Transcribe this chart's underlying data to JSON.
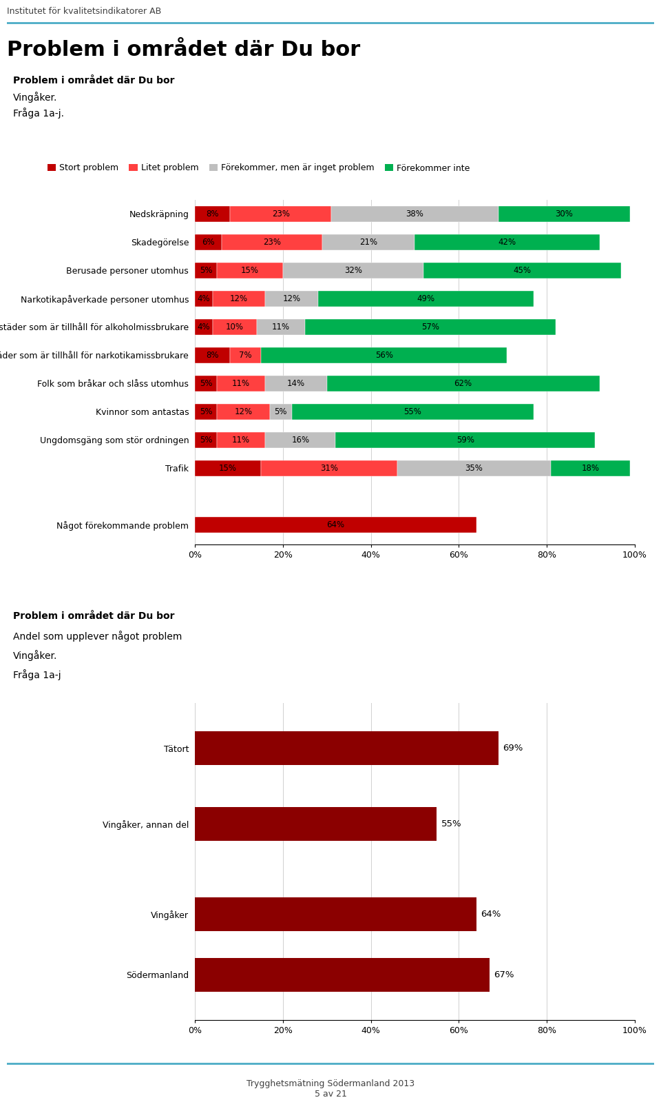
{
  "title_main": "Problem i området där Du bor",
  "subtitle1": "Problem i området där Du bor",
  "subtitle2": "Vingåker.",
  "subtitle3": "Fråga 1a-j.",
  "header_text": "Institutet för kvalitetsindikatorer AB",
  "footer_text": "Trygghetsmätning Södermanland 2013\n5 av 21",
  "legend_labels": [
    "Stort problem",
    "Litet problem",
    "Förekommer, men är inget problem",
    "Förekommer inte"
  ],
  "legend_colors": [
    "#c00000",
    "#ff4040",
    "#bfbfbf",
    "#00b050"
  ],
  "chart1_categories": [
    "Nedskräpning",
    "Skadegörelse",
    "Berusade personer utomhus",
    "Narkotikapåverkade personer utomhus",
    "Bostäder som är tillhåll för alkoholmissbrukare",
    "Bostäder som är tillhåll för narkotikamissbrukare",
    "Folk som bråkar och slåss utomhus",
    "Kvinnor som antastas",
    "Ungdomsgäng som stör ordningen",
    "Trafik",
    "Något förekommande problem"
  ],
  "chart1_data": [
    [
      8,
      23,
      38,
      30
    ],
    [
      6,
      23,
      21,
      42
    ],
    [
      5,
      15,
      32,
      45
    ],
    [
      4,
      12,
      12,
      49
    ],
    [
      4,
      10,
      11,
      57
    ],
    [
      8,
      7,
      0,
      56
    ],
    [
      5,
      11,
      14,
      62
    ],
    [
      5,
      12,
      5,
      55
    ],
    [
      5,
      11,
      16,
      59
    ],
    [
      15,
      31,
      35,
      18
    ],
    [
      64,
      0,
      0,
      0
    ]
  ],
  "chart1_labels": [
    [
      "8%",
      "23%",
      "38%",
      "30%"
    ],
    [
      "6%",
      "23%",
      "21%",
      "42%"
    ],
    [
      "5%",
      "15%",
      "32%",
      "45%"
    ],
    [
      "4%",
      "12%",
      "12%",
      "49%"
    ],
    [
      "4%",
      "10%",
      "11%",
      "57%"
    ],
    [
      "8%",
      "7%",
      "",
      "56%"
    ],
    [
      "5%",
      "11%",
      "14%",
      "62%"
    ],
    [
      "5%",
      "12%",
      "5%",
      "55%"
    ],
    [
      "5%",
      "11%",
      "16%",
      "59%"
    ],
    [
      "15%",
      "31%",
      "35%",
      "18%"
    ],
    [
      "64%",
      "",
      "",
      ""
    ]
  ],
  "chart2_title1": "Problem i området där Du bor",
  "chart2_title2": "Andel som upplever något problem",
  "chart2_title3": "Vingåker.",
  "chart2_title4": "Fråga 1a-j",
  "chart2_categories": [
    "Tätort",
    "Vingåker, annan del",
    "Vingåker",
    "Södermanland"
  ],
  "chart2_values": [
    69,
    55,
    64,
    67
  ],
  "chart2_color": "#8b0000",
  "bar_color_stort": "#c00000",
  "bar_color_litet": "#ff4040",
  "bar_color_forekommer": "#bfbfbf",
  "bar_color_inte": "#00b050",
  "bg_color": "#ffffff",
  "line_color": "#4bacc6",
  "grid_color": "#d0d0d0"
}
